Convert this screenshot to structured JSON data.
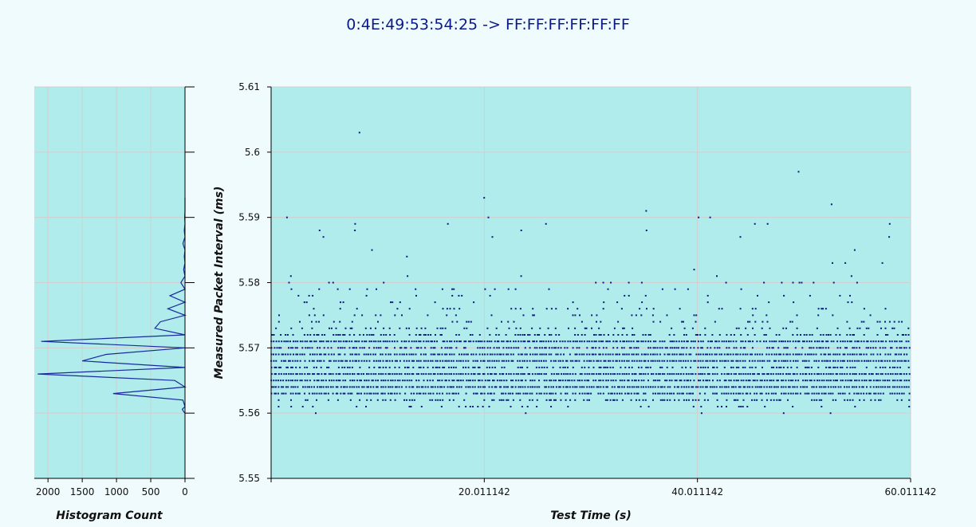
{
  "title": "0:4E:49:53:54:25 -> FF:FF:FF:FF:FF:FF",
  "colors": {
    "plot_bg": "#b0ecec",
    "page_bg": "#f0fbfd",
    "point": "#0b1a80",
    "line": "#1a2a9c",
    "grid": "#cfcfcf"
  },
  "chart_data": [
    {
      "type": "line",
      "name": "histogram",
      "xlabel": "Histogram Count",
      "ylabel": "",
      "x_reversed": true,
      "xlim": [
        0,
        2200
      ],
      "ylim": [
        5.55,
        5.61
      ],
      "xticks": [
        2000,
        1500,
        1000,
        500,
        0
      ],
      "xtick_labels": [
        "2000",
        "1500",
        "1000",
        "500",
        "0"
      ],
      "grid": true,
      "points": [
        {
          "y": 5.56,
          "count": 0
        },
        {
          "y": 5.5603,
          "count": 25
        },
        {
          "y": 5.5606,
          "count": 40
        },
        {
          "y": 5.561,
          "count": 0
        },
        {
          "y": 5.562,
          "count": 30
        },
        {
          "y": 5.563,
          "count": 1050
        },
        {
          "y": 5.564,
          "count": 0
        },
        {
          "y": 5.565,
          "count": 150
        },
        {
          "y": 5.566,
          "count": 2150
        },
        {
          "y": 5.567,
          "count": 0
        },
        {
          "y": 5.568,
          "count": 1500
        },
        {
          "y": 5.569,
          "count": 1150
        },
        {
          "y": 5.57,
          "count": 0
        },
        {
          "y": 5.571,
          "count": 2100
        },
        {
          "y": 5.572,
          "count": 0
        },
        {
          "y": 5.573,
          "count": 440
        },
        {
          "y": 5.574,
          "count": 360
        },
        {
          "y": 5.575,
          "count": 0
        },
        {
          "y": 5.576,
          "count": 250
        },
        {
          "y": 5.577,
          "count": 0
        },
        {
          "y": 5.578,
          "count": 220
        },
        {
          "y": 5.579,
          "count": 0
        },
        {
          "y": 5.58,
          "count": 60
        },
        {
          "y": 5.581,
          "count": 0
        },
        {
          "y": 5.582,
          "count": 20
        },
        {
          "y": 5.583,
          "count": 0
        },
        {
          "y": 5.584,
          "count": 10
        },
        {
          "y": 5.585,
          "count": 0
        },
        {
          "y": 5.586,
          "count": 30
        },
        {
          "y": 5.587,
          "count": 0
        },
        {
          "y": 5.588,
          "count": 10
        },
        {
          "y": 5.589,
          "count": 0
        },
        {
          "y": 5.59,
          "count": 5
        },
        {
          "y": 5.591,
          "count": 0
        },
        {
          "y": 5.592,
          "count": 0
        },
        {
          "y": 5.593,
          "count": 0
        }
      ]
    },
    {
      "type": "scatter",
      "name": "packet-interval",
      "xlabel": "Test Time (s)",
      "ylabel": "Measured Packet Interval (ms)",
      "xlim": [
        0.011142,
        60.011142
      ],
      "ylim": [
        5.55,
        5.61
      ],
      "xticks": [
        20.011142,
        40.011142,
        60.011142
      ],
      "xtick_labels": [
        "20.011142",
        "40.011142",
        "60.011142"
      ],
      "yticks": [
        5.55,
        5.56,
        5.57,
        5.58,
        5.59,
        5.6,
        5.61
      ],
      "ytick_labels": [
        "5.55",
        "5.56",
        "5.57",
        "5.58",
        "5.59",
        "5.6",
        "5.61"
      ],
      "grid": true,
      "y_levels": [
        5.56,
        5.561,
        5.562,
        5.563,
        5.564,
        5.565,
        5.566,
        5.567,
        5.568,
        5.569,
        5.57,
        5.571,
        5.572,
        5.573,
        5.574,
        5.575,
        5.576,
        5.577,
        5.578,
        5.579,
        5.58,
        5.581,
        5.582,
        5.583,
        5.584,
        5.585,
        5.586,
        5.587,
        5.588,
        5.589,
        5.59
      ],
      "level_density": [
        0.004,
        0.12,
        0.45,
        0.85,
        0.95,
        0.92,
        0.98,
        0.6,
        0.95,
        0.9,
        0.7,
        0.96,
        0.5,
        0.22,
        0.16,
        0.1,
        0.13,
        0.1,
        0.07,
        0.06,
        0.05,
        0.015,
        0.01,
        0.008,
        0.006,
        0.005,
        0.004,
        0.004,
        0.004,
        0.003,
        0.003
      ],
      "outliers": [
        {
          "x": 8.3,
          "y": 5.603
        },
        {
          "x": 20.0,
          "y": 5.593
        },
        {
          "x": 20.4,
          "y": 5.59
        },
        {
          "x": 35.2,
          "y": 5.591
        },
        {
          "x": 41.2,
          "y": 5.59
        },
        {
          "x": 49.5,
          "y": 5.597
        },
        {
          "x": 52.6,
          "y": 5.592
        },
        {
          "x": 4.2,
          "y": 5.56
        },
        {
          "x": 23.9,
          "y": 5.56
        },
        {
          "x": 40.4,
          "y": 5.56
        },
        {
          "x": 48.1,
          "y": 5.56
        },
        {
          "x": 52.5,
          "y": 5.56
        },
        {
          "x": 1.5,
          "y": 5.59
        },
        {
          "x": 7.9,
          "y": 5.589
        },
        {
          "x": 16.6,
          "y": 5.589
        },
        {
          "x": 25.8,
          "y": 5.589
        },
        {
          "x": 45.4,
          "y": 5.589
        },
        {
          "x": 46.6,
          "y": 5.589
        },
        {
          "x": 58.0,
          "y": 5.587
        }
      ]
    }
  ]
}
